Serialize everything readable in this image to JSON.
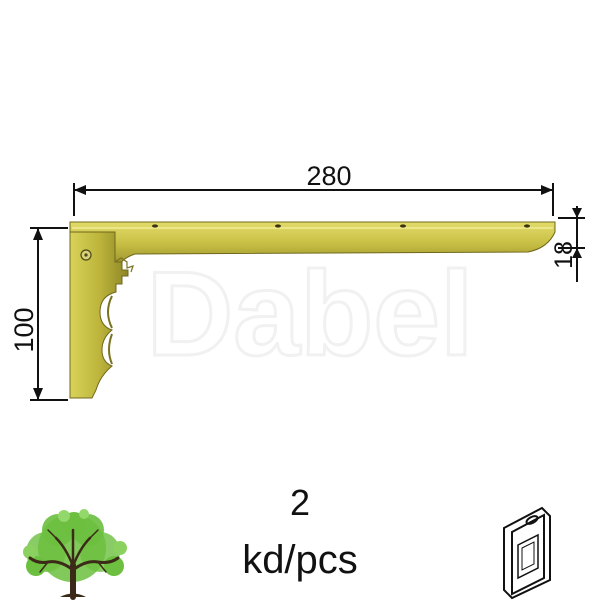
{
  "watermark": "Dabel",
  "dimensions": {
    "length": "280",
    "height": "100",
    "thickness": "18"
  },
  "quantity": {
    "number": "2",
    "unit": "kd/pcs"
  },
  "colors": {
    "bracket_light": "#d6cf52",
    "bracket_mid": "#b9b23a",
    "bracket_dark": "#857c22",
    "tree_leaf": "#6cbf3f",
    "tree_trunk": "#3b2a17"
  },
  "icons": {
    "tree": "tree-icon",
    "package": "blister-package-icon"
  }
}
